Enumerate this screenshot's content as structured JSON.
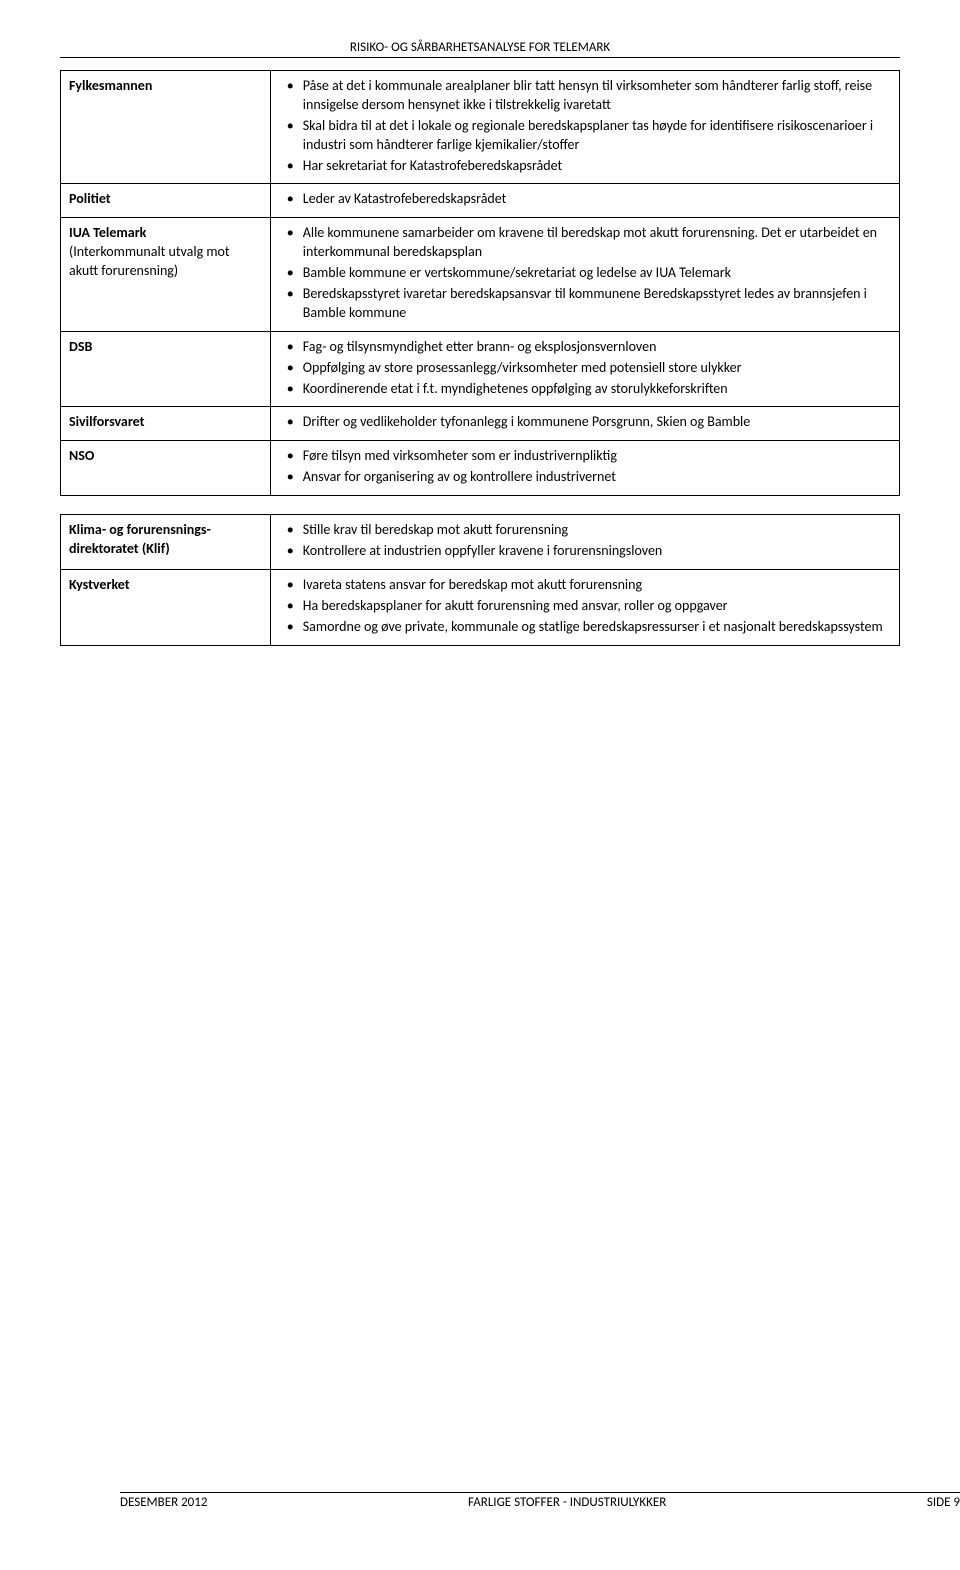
{
  "header": "RISIKO- OG SÅRBARHETSANALYSE FOR TELEMARK",
  "table1": {
    "rows": [
      {
        "label": "Fylkesmannen",
        "bullets": [
          "Påse at det i kommunale arealplaner blir tatt hensyn til virksomheter som håndterer farlig stoff, reise innsigelse dersom hensynet ikke i tilstrekkelig ivaretatt",
          "Skal bidra til at det i lokale og regionale beredskapsplaner tas høyde for identifisere risikoscenarioer i industri som håndterer farlige kjemikalier/stoffer",
          "Har sekretariat for Katastrofeberedskapsrådet"
        ]
      },
      {
        "label": "Politiet",
        "bullets": [
          "Leder av Katastrofeberedskapsrådet"
        ]
      },
      {
        "label": "IUA Telemark",
        "label_sub": "(Interkommunalt utvalg mot akutt forurensning)",
        "bullets": [
          "Alle kommunene samarbeider om kravene til beredskap mot akutt forurensning. Det er utarbeidet en interkommunal beredskapsplan",
          "Bamble kommune er vertskommune/sekretariat og ledelse av IUA Telemark",
          "Beredskapsstyret ivaretar beredskapsansvar til kommunene Beredskapsstyret ledes av brannsjefen i Bamble kommune"
        ]
      },
      {
        "label": "DSB",
        "bullets": [
          "Fag- og tilsynsmyndighet etter brann- og eksplosjonsvernloven",
          "Oppfølging av store prosessanlegg/virksomheter med potensiell store ulykker",
          "Koordinerende etat i f.t. myndighetenes oppfølging av storulykkeforskriften"
        ]
      },
      {
        "label": "Sivilforsvaret",
        "bullets": [
          "Drifter og vedlikeholder tyfonanlegg i kommunene Porsgrunn, Skien og Bamble"
        ]
      },
      {
        "label": "NSO",
        "bullets": [
          "Føre tilsyn med virksomheter som er industrivernpliktig",
          "Ansvar for organisering av og kontrollere industrivernet"
        ]
      }
    ]
  },
  "table2": {
    "rows": [
      {
        "label": "Klima- og forurensnings-direktoratet  (Klif)",
        "bullets": [
          "Stille krav til beredskap mot akutt forurensning",
          "Kontrollere at industrien oppfyller kravene i forurensningsloven"
        ]
      },
      {
        "label": "Kystverket",
        "bullets": [
          "Ivareta statens ansvar for beredskap mot akutt forurensning",
          "Ha beredskapsplaner for akutt forurensning med ansvar, roller og oppgaver",
          "Samordne og øve private, kommunale og statlige beredskapsressurser i et nasjonalt beredskapssystem"
        ]
      }
    ]
  },
  "footer": {
    "left": "DESEMBER 2012",
    "center": "FARLIGE STOFFER - INDUSTRIULYKKER",
    "right": "SIDE 9"
  }
}
